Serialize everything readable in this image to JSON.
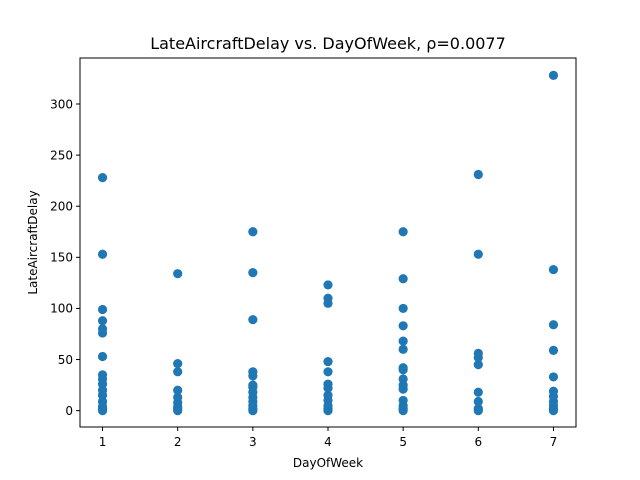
{
  "chart_data": {
    "type": "scatter",
    "title": "LateAircraftDelay vs. DayOfWeek, ρ=0.0077",
    "xlabel": "DayOfWeek",
    "ylabel": "LateAircraftDelay",
    "xlim": [
      0.7,
      7.3
    ],
    "ylim": [
      -16,
      345
    ],
    "xticks": [
      1,
      2,
      3,
      4,
      5,
      6,
      7
    ],
    "yticks": [
      0,
      50,
      100,
      150,
      200,
      250,
      300
    ],
    "grid": false,
    "marker_color": "#1f77b4",
    "points": [
      {
        "x": 1,
        "y": 0
      },
      {
        "x": 1,
        "y": 2
      },
      {
        "x": 1,
        "y": 4
      },
      {
        "x": 1,
        "y": 9
      },
      {
        "x": 1,
        "y": 15
      },
      {
        "x": 1,
        "y": 20
      },
      {
        "x": 1,
        "y": 26
      },
      {
        "x": 1,
        "y": 31
      },
      {
        "x": 1,
        "y": 35
      },
      {
        "x": 1,
        "y": 53
      },
      {
        "x": 1,
        "y": 76
      },
      {
        "x": 1,
        "y": 80
      },
      {
        "x": 1,
        "y": 88
      },
      {
        "x": 1,
        "y": 99
      },
      {
        "x": 1,
        "y": 153
      },
      {
        "x": 1,
        "y": 228
      },
      {
        "x": 2,
        "y": 0
      },
      {
        "x": 2,
        "y": 2
      },
      {
        "x": 2,
        "y": 4
      },
      {
        "x": 2,
        "y": 8
      },
      {
        "x": 2,
        "y": 13
      },
      {
        "x": 2,
        "y": 20
      },
      {
        "x": 2,
        "y": 38
      },
      {
        "x": 2,
        "y": 46
      },
      {
        "x": 2,
        "y": 134
      },
      {
        "x": 3,
        "y": 0
      },
      {
        "x": 3,
        "y": 2
      },
      {
        "x": 3,
        "y": 5
      },
      {
        "x": 3,
        "y": 9
      },
      {
        "x": 3,
        "y": 13
      },
      {
        "x": 3,
        "y": 18
      },
      {
        "x": 3,
        "y": 23
      },
      {
        "x": 3,
        "y": 25
      },
      {
        "x": 3,
        "y": 34
      },
      {
        "x": 3,
        "y": 38
      },
      {
        "x": 3,
        "y": 89
      },
      {
        "x": 3,
        "y": 135
      },
      {
        "x": 3,
        "y": 175
      },
      {
        "x": 4,
        "y": 0
      },
      {
        "x": 4,
        "y": 2
      },
      {
        "x": 4,
        "y": 5
      },
      {
        "x": 4,
        "y": 10
      },
      {
        "x": 4,
        "y": 15
      },
      {
        "x": 4,
        "y": 22
      },
      {
        "x": 4,
        "y": 26
      },
      {
        "x": 4,
        "y": 38
      },
      {
        "x": 4,
        "y": 48
      },
      {
        "x": 4,
        "y": 105
      },
      {
        "x": 4,
        "y": 110
      },
      {
        "x": 4,
        "y": 123
      },
      {
        "x": 5,
        "y": 0
      },
      {
        "x": 5,
        "y": 2
      },
      {
        "x": 5,
        "y": 5
      },
      {
        "x": 5,
        "y": 10
      },
      {
        "x": 5,
        "y": 21
      },
      {
        "x": 5,
        "y": 25
      },
      {
        "x": 5,
        "y": 31
      },
      {
        "x": 5,
        "y": 40
      },
      {
        "x": 5,
        "y": 42
      },
      {
        "x": 5,
        "y": 60
      },
      {
        "x": 5,
        "y": 68
      },
      {
        "x": 5,
        "y": 83
      },
      {
        "x": 5,
        "y": 100
      },
      {
        "x": 5,
        "y": 129
      },
      {
        "x": 5,
        "y": 175
      },
      {
        "x": 6,
        "y": 0
      },
      {
        "x": 6,
        "y": 2
      },
      {
        "x": 6,
        "y": 9
      },
      {
        "x": 6,
        "y": 18
      },
      {
        "x": 6,
        "y": 45
      },
      {
        "x": 6,
        "y": 52
      },
      {
        "x": 6,
        "y": 56
      },
      {
        "x": 6,
        "y": 153
      },
      {
        "x": 6,
        "y": 231
      },
      {
        "x": 7,
        "y": 0
      },
      {
        "x": 7,
        "y": 2
      },
      {
        "x": 7,
        "y": 5
      },
      {
        "x": 7,
        "y": 9
      },
      {
        "x": 7,
        "y": 14
      },
      {
        "x": 7,
        "y": 19
      },
      {
        "x": 7,
        "y": 33
      },
      {
        "x": 7,
        "y": 59
      },
      {
        "x": 7,
        "y": 84
      },
      {
        "x": 7,
        "y": 138
      },
      {
        "x": 7,
        "y": 328
      }
    ]
  }
}
